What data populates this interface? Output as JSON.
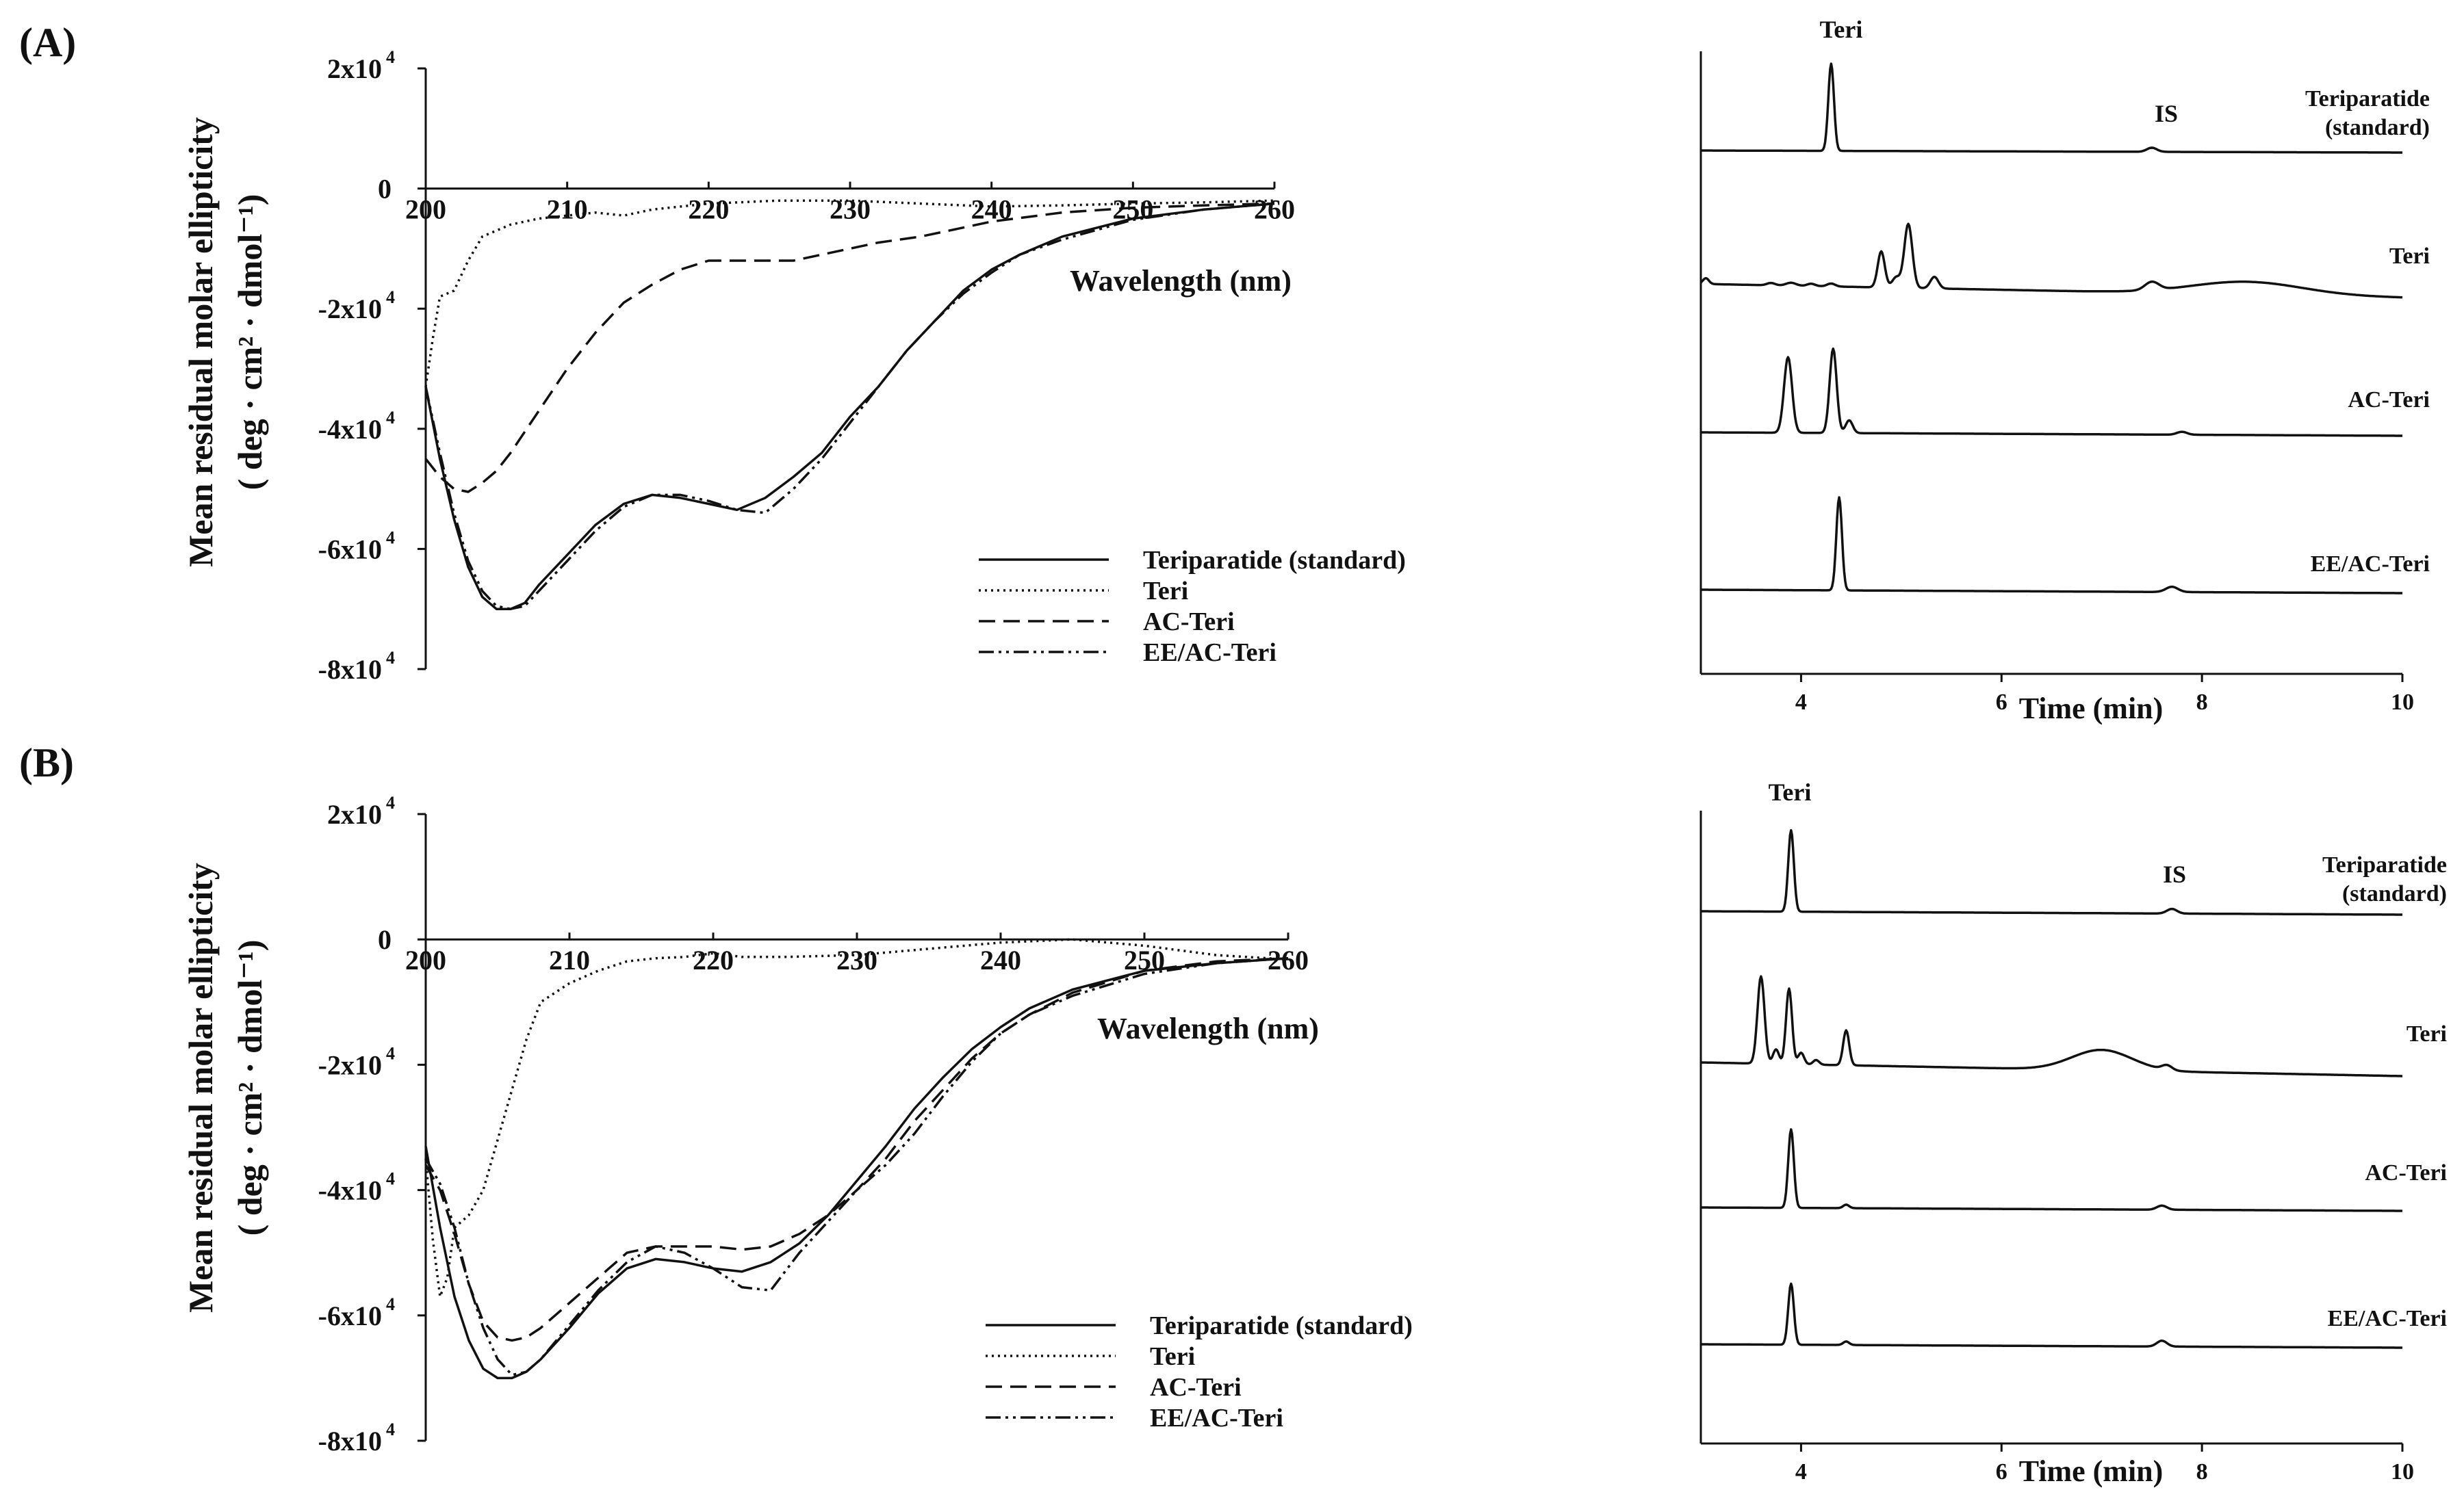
{
  "panels": [
    {
      "label": "(A)",
      "cd": {
        "type": "line",
        "xlabel": "Wavelength (nm)",
        "ylabel_line1": "Mean residual molar ellipticity",
        "ylabel_line2": "( deg · cm² · dmol⁻¹)",
        "xlim": [
          200,
          260
        ],
        "ylim": [
          -80000,
          20000
        ],
        "x_ticks": [
          "200",
          "210",
          "220",
          "230",
          "240",
          "250",
          "260"
        ],
        "y_ticks": [
          {
            "value": 20000,
            "base": "2x10",
            "exp": "4"
          },
          {
            "value": 0,
            "base": "0",
            "exp": ""
          },
          {
            "value": -20000,
            "base": "-2x10",
            "exp": "4"
          },
          {
            "value": -40000,
            "base": "-4x10",
            "exp": "4"
          },
          {
            "value": -60000,
            "base": "-6x10",
            "exp": "4"
          },
          {
            "value": -80000,
            "base": "-8x10",
            "exp": "4"
          }
        ],
        "legend": [
          "Teriparatide (standard)",
          "Teri",
          "AC-Teri",
          "EE/AC-Teri"
        ],
        "series": [
          {
            "name": "Teriparatide (standard)",
            "style": "solid",
            "x": [
              200,
              201,
              202,
              203,
              204,
              205,
              206,
              207,
              208,
              210,
              212,
              214,
              216,
              218,
              220,
              222,
              224,
              226,
              228,
              230,
              232,
              234,
              236,
              238,
              240,
              242,
              245,
              250,
              255,
              260
            ],
            "y": [
              -33000,
              -45000,
              -55000,
              -63000,
              -68000,
              -70000,
              -70000,
              -69000,
              -66000,
              -61000,
              -56000,
              -52500,
              -51000,
              -51500,
              -52500,
              -53500,
              -51500,
              -48000,
              -44000,
              -38000,
              -33000,
              -27000,
              -22000,
              -17000,
              -13500,
              -11000,
              -8000,
              -5000,
              -3500,
              -2500
            ]
          },
          {
            "name": "Teri",
            "style": "dotted",
            "x": [
              200,
              200.5,
              201,
              202,
              203,
              204,
              206,
              208,
              210,
              212,
              214,
              216,
              220,
              225,
              230,
              235,
              240,
              245,
              250,
              255,
              260
            ],
            "y": [
              -33000,
              -25000,
              -18000,
              -17000,
              -12000,
              -8000,
              -6000,
              -5000,
              -4500,
              -4000,
              -4500,
              -3500,
              -2500,
              -2000,
              -2000,
              -2500,
              -3000,
              -2800,
              -2500,
              -2300,
              -2000
            ]
          },
          {
            "name": "AC-Teri",
            "style": "dashed",
            "x": [
              200,
              201,
              202,
              203,
              204,
              205,
              206,
              208,
              210,
              212,
              214,
              216,
              218,
              220,
              222,
              224,
              226,
              228,
              230,
              232,
              235,
              238,
              240,
              245,
              250,
              255,
              260
            ],
            "y": [
              -45000,
              -48000,
              -50000,
              -50500,
              -49000,
              -47000,
              -44000,
              -37000,
              -30000,
              -24000,
              -19000,
              -16000,
              -13500,
              -12000,
              -12000,
              -12000,
              -12000,
              -11000,
              -10000,
              -9000,
              -8000,
              -6500,
              -5500,
              -4000,
              -3200,
              -2800,
              -2500
            ]
          },
          {
            "name": "EE/AC-Teri",
            "style": "dashdotdot",
            "x": [
              200,
              201,
              202,
              203,
              204,
              205,
              206,
              207,
              208,
              210,
              212,
              214,
              216,
              218,
              220,
              222,
              224,
              226,
              228,
              230,
              232,
              234,
              236,
              238,
              240,
              242,
              245,
              250,
              255,
              260
            ],
            "y": [
              -33000,
              -44000,
              -54000,
              -62000,
              -67000,
              -69500,
              -70000,
              -69500,
              -67000,
              -62000,
              -57000,
              -53000,
              -51000,
              -51000,
              -52000,
              -53500,
              -54000,
              -50000,
              -45000,
              -39000,
              -33000,
              -27000,
              -22000,
              -17500,
              -14000,
              -11000,
              -8500,
              -5200,
              -3500,
              -2500
            ]
          }
        ]
      },
      "hplc": {
        "type": "line",
        "xlabel": "Time (min)",
        "xlim": [
          3,
          10
        ],
        "x_ticks": [
          "4",
          "6",
          "8",
          "10"
        ],
        "peak_label_teri": "Teri",
        "peak_label_is": "IS",
        "traces": [
          {
            "label_line1": "Teriparatide",
            "label_line2": "(standard)",
            "peaks": [
              {
                "t": 4.3,
                "h": 150,
                "w": 0.028
              },
              {
                "t": 7.5,
                "h": 7,
                "w": 0.05
              }
            ],
            "bumps": []
          },
          {
            "label_line1": "Teri",
            "label_line2": "",
            "peaks": [
              {
                "t": 3.05,
                "h": 10,
                "w": 0.03
              },
              {
                "t": 3.7,
                "h": 4,
                "w": 0.04
              },
              {
                "t": 3.9,
                "h": 5,
                "w": 0.05
              },
              {
                "t": 4.1,
                "h": 4,
                "w": 0.04
              },
              {
                "t": 4.3,
                "h": 5,
                "w": 0.04
              },
              {
                "t": 4.8,
                "h": 62,
                "w": 0.035
              },
              {
                "t": 5.07,
                "h": 110,
                "w": 0.04
              },
              {
                "t": 4.95,
                "h": 18,
                "w": 0.04
              },
              {
                "t": 5.33,
                "h": 20,
                "w": 0.04
              },
              {
                "t": 7.5,
                "h": 14,
                "w": 0.07
              }
            ],
            "bumps": [
              {
                "t": 8.45,
                "h": 22,
                "w": 0.55
              }
            ]
          },
          {
            "label_line1": "AC-Teri",
            "label_line2": "",
            "peaks": [
              {
                "t": 3.87,
                "h": 130,
                "w": 0.04
              },
              {
                "t": 4.32,
                "h": 145,
                "w": 0.035
              },
              {
                "t": 4.48,
                "h": 22,
                "w": 0.035
              },
              {
                "t": 7.8,
                "h": 5,
                "w": 0.05
              }
            ],
            "bumps": []
          },
          {
            "label_line1": "EE/AC-Teri",
            "label_line2": "",
            "peaks": [
              {
                "t": 4.38,
                "h": 160,
                "w": 0.028
              },
              {
                "t": 7.7,
                "h": 9,
                "w": 0.06
              }
            ],
            "bumps": []
          }
        ]
      }
    },
    {
      "label": "(B)",
      "cd": {
        "type": "line",
        "xlabel": "Wavelength (nm)",
        "ylabel_line1": "Mean residual molar ellipticity",
        "ylabel_line2": "( deg · cm² · dmol⁻¹)",
        "xlim": [
          200,
          260
        ],
        "ylim": [
          -80000,
          20000
        ],
        "x_ticks": [
          "200",
          "210",
          "220",
          "230",
          "240",
          "250",
          "260"
        ],
        "y_ticks": [
          {
            "value": 20000,
            "base": "2x10",
            "exp": "4"
          },
          {
            "value": 0,
            "base": "0",
            "exp": ""
          },
          {
            "value": -20000,
            "base": "-2x10",
            "exp": "4"
          },
          {
            "value": -40000,
            "base": "-4x10",
            "exp": "4"
          },
          {
            "value": -60000,
            "base": "-6x10",
            "exp": "4"
          },
          {
            "value": -80000,
            "base": "-8x10",
            "exp": "4"
          }
        ],
        "legend": [
          "Teriparatide (standard)",
          "Teri",
          "AC-Teri",
          "EE/AC-Teri"
        ],
        "series": [
          {
            "name": "Teriparatide (standard)",
            "style": "solid",
            "x": [
              200,
              201,
              202,
              203,
              204,
              205,
              206,
              207,
              208,
              210,
              212,
              214,
              216,
              218,
              220,
              222,
              224,
              226,
              228,
              230,
              232,
              234,
              236,
              238,
              240,
              242,
              245,
              250,
              255,
              260
            ],
            "y": [
              -33000,
              -46000,
              -57000,
              -64000,
              -68500,
              -70000,
              -70000,
              -69000,
              -67000,
              -62000,
              -56500,
              -52500,
              -51000,
              -51500,
              -52500,
              -53000,
              -51500,
              -48500,
              -44000,
              -38500,
              -33000,
              -27000,
              -22000,
              -17500,
              -14000,
              -11000,
              -8000,
              -5000,
              -3800,
              -3000
            ]
          },
          {
            "name": "Teri",
            "style": "dotted",
            "x": [
              200,
              200.5,
              201,
              201.5,
              202,
              203,
              204,
              205,
              206,
              207,
              208,
              210,
              212,
              214,
              216,
              218,
              220,
              222,
              225,
              230,
              235,
              240,
              245,
              250,
              255,
              260
            ],
            "y": [
              -35000,
              -48000,
              -57000,
              -54000,
              -46000,
              -44000,
              -40000,
              -32000,
              -24000,
              -16000,
              -10000,
              -7000,
              -5000,
              -3500,
              -3000,
              -2800,
              -2200,
              -2800,
              -2800,
              -2500,
              -1500,
              -500,
              0,
              -1000,
              -2500,
              -3200
            ]
          },
          {
            "name": "AC-Teri",
            "style": "dashed",
            "x": [
              200,
              201,
              202,
              203,
              204,
              205,
              206,
              207,
              208,
              210,
              212,
              214,
              216,
              218,
              220,
              222,
              224,
              226,
              228,
              230,
              232,
              234,
              236,
              238,
              240,
              242,
              245,
              250,
              255,
              260
            ],
            "y": [
              -36000,
              -40000,
              -47000,
              -55000,
              -61000,
              -63500,
              -64000,
              -63500,
              -62000,
              -58000,
              -54000,
              -50000,
              -49000,
              -49000,
              -49000,
              -49500,
              -49000,
              -47000,
              -44000,
              -40000,
              -35000,
              -29000,
              -24000,
              -19000,
              -15000,
              -12000,
              -8500,
              -5000,
              -3500,
              -3000
            ]
          },
          {
            "name": "EE/AC-Teri",
            "style": "dashdotdot",
            "x": [
              200,
              201,
              202,
              203,
              204,
              205,
              206,
              207,
              208,
              210,
              212,
              214,
              216,
              218,
              220,
              222,
              224,
              226,
              228,
              230,
              232,
              234,
              236,
              238,
              240,
              242,
              245,
              250,
              255,
              260
            ],
            "y": [
              -35000,
              -39000,
              -46000,
              -55000,
              -62000,
              -67000,
              -69500,
              -69000,
              -67000,
              -61500,
              -56000,
              -51500,
              -49000,
              -50000,
              -52500,
              -55500,
              -56000,
              -50000,
              -45000,
              -40000,
              -36000,
              -31000,
              -25000,
              -19500,
              -15000,
              -12000,
              -9000,
              -5500,
              -3800,
              -3000
            ]
          }
        ]
      },
      "hplc": {
        "type": "line",
        "xlabel": "Time (min)",
        "xlim": [
          3,
          10
        ],
        "x_ticks": [
          "4",
          "6",
          "8",
          "10"
        ],
        "peak_label_teri": "Teri",
        "peak_label_is": "IS",
        "traces": [
          {
            "label_line1": "Teriparatide",
            "label_line2": "(standard)",
            "peaks": [
              {
                "t": 3.9,
                "h": 140,
                "w": 0.028
              },
              {
                "t": 7.7,
                "h": 8,
                "w": 0.05
              }
            ],
            "bumps": []
          },
          {
            "label_line1": "Teri",
            "label_line2": "",
            "peaks": [
              {
                "t": 3.6,
                "h": 150,
                "w": 0.035
              },
              {
                "t": 3.75,
                "h": 25,
                "w": 0.03
              },
              {
                "t": 3.88,
                "h": 130,
                "w": 0.03
              },
              {
                "t": 4.0,
                "h": 20,
                "w": 0.03
              },
              {
                "t": 4.15,
                "h": 8,
                "w": 0.03
              },
              {
                "t": 4.45,
                "h": 60,
                "w": 0.03
              },
              {
                "t": 7.65,
                "h": 8,
                "w": 0.05
              }
            ],
            "bumps": [
              {
                "t": 7.0,
                "h": 35,
                "w": 0.3
              }
            ]
          },
          {
            "label_line1": "AC-Teri",
            "label_line2": "",
            "peaks": [
              {
                "t": 3.9,
                "h": 135,
                "w": 0.028
              },
              {
                "t": 4.45,
                "h": 6,
                "w": 0.03
              },
              {
                "t": 7.6,
                "h": 7,
                "w": 0.05
              }
            ],
            "bumps": []
          },
          {
            "label_line1": "EE/AC-Teri",
            "label_line2": "",
            "peaks": [
              {
                "t": 3.9,
                "h": 105,
                "w": 0.028
              },
              {
                "t": 4.45,
                "h": 6,
                "w": 0.03
              },
              {
                "t": 7.6,
                "h": 10,
                "w": 0.05
              }
            ],
            "bumps": []
          }
        ]
      }
    }
  ]
}
